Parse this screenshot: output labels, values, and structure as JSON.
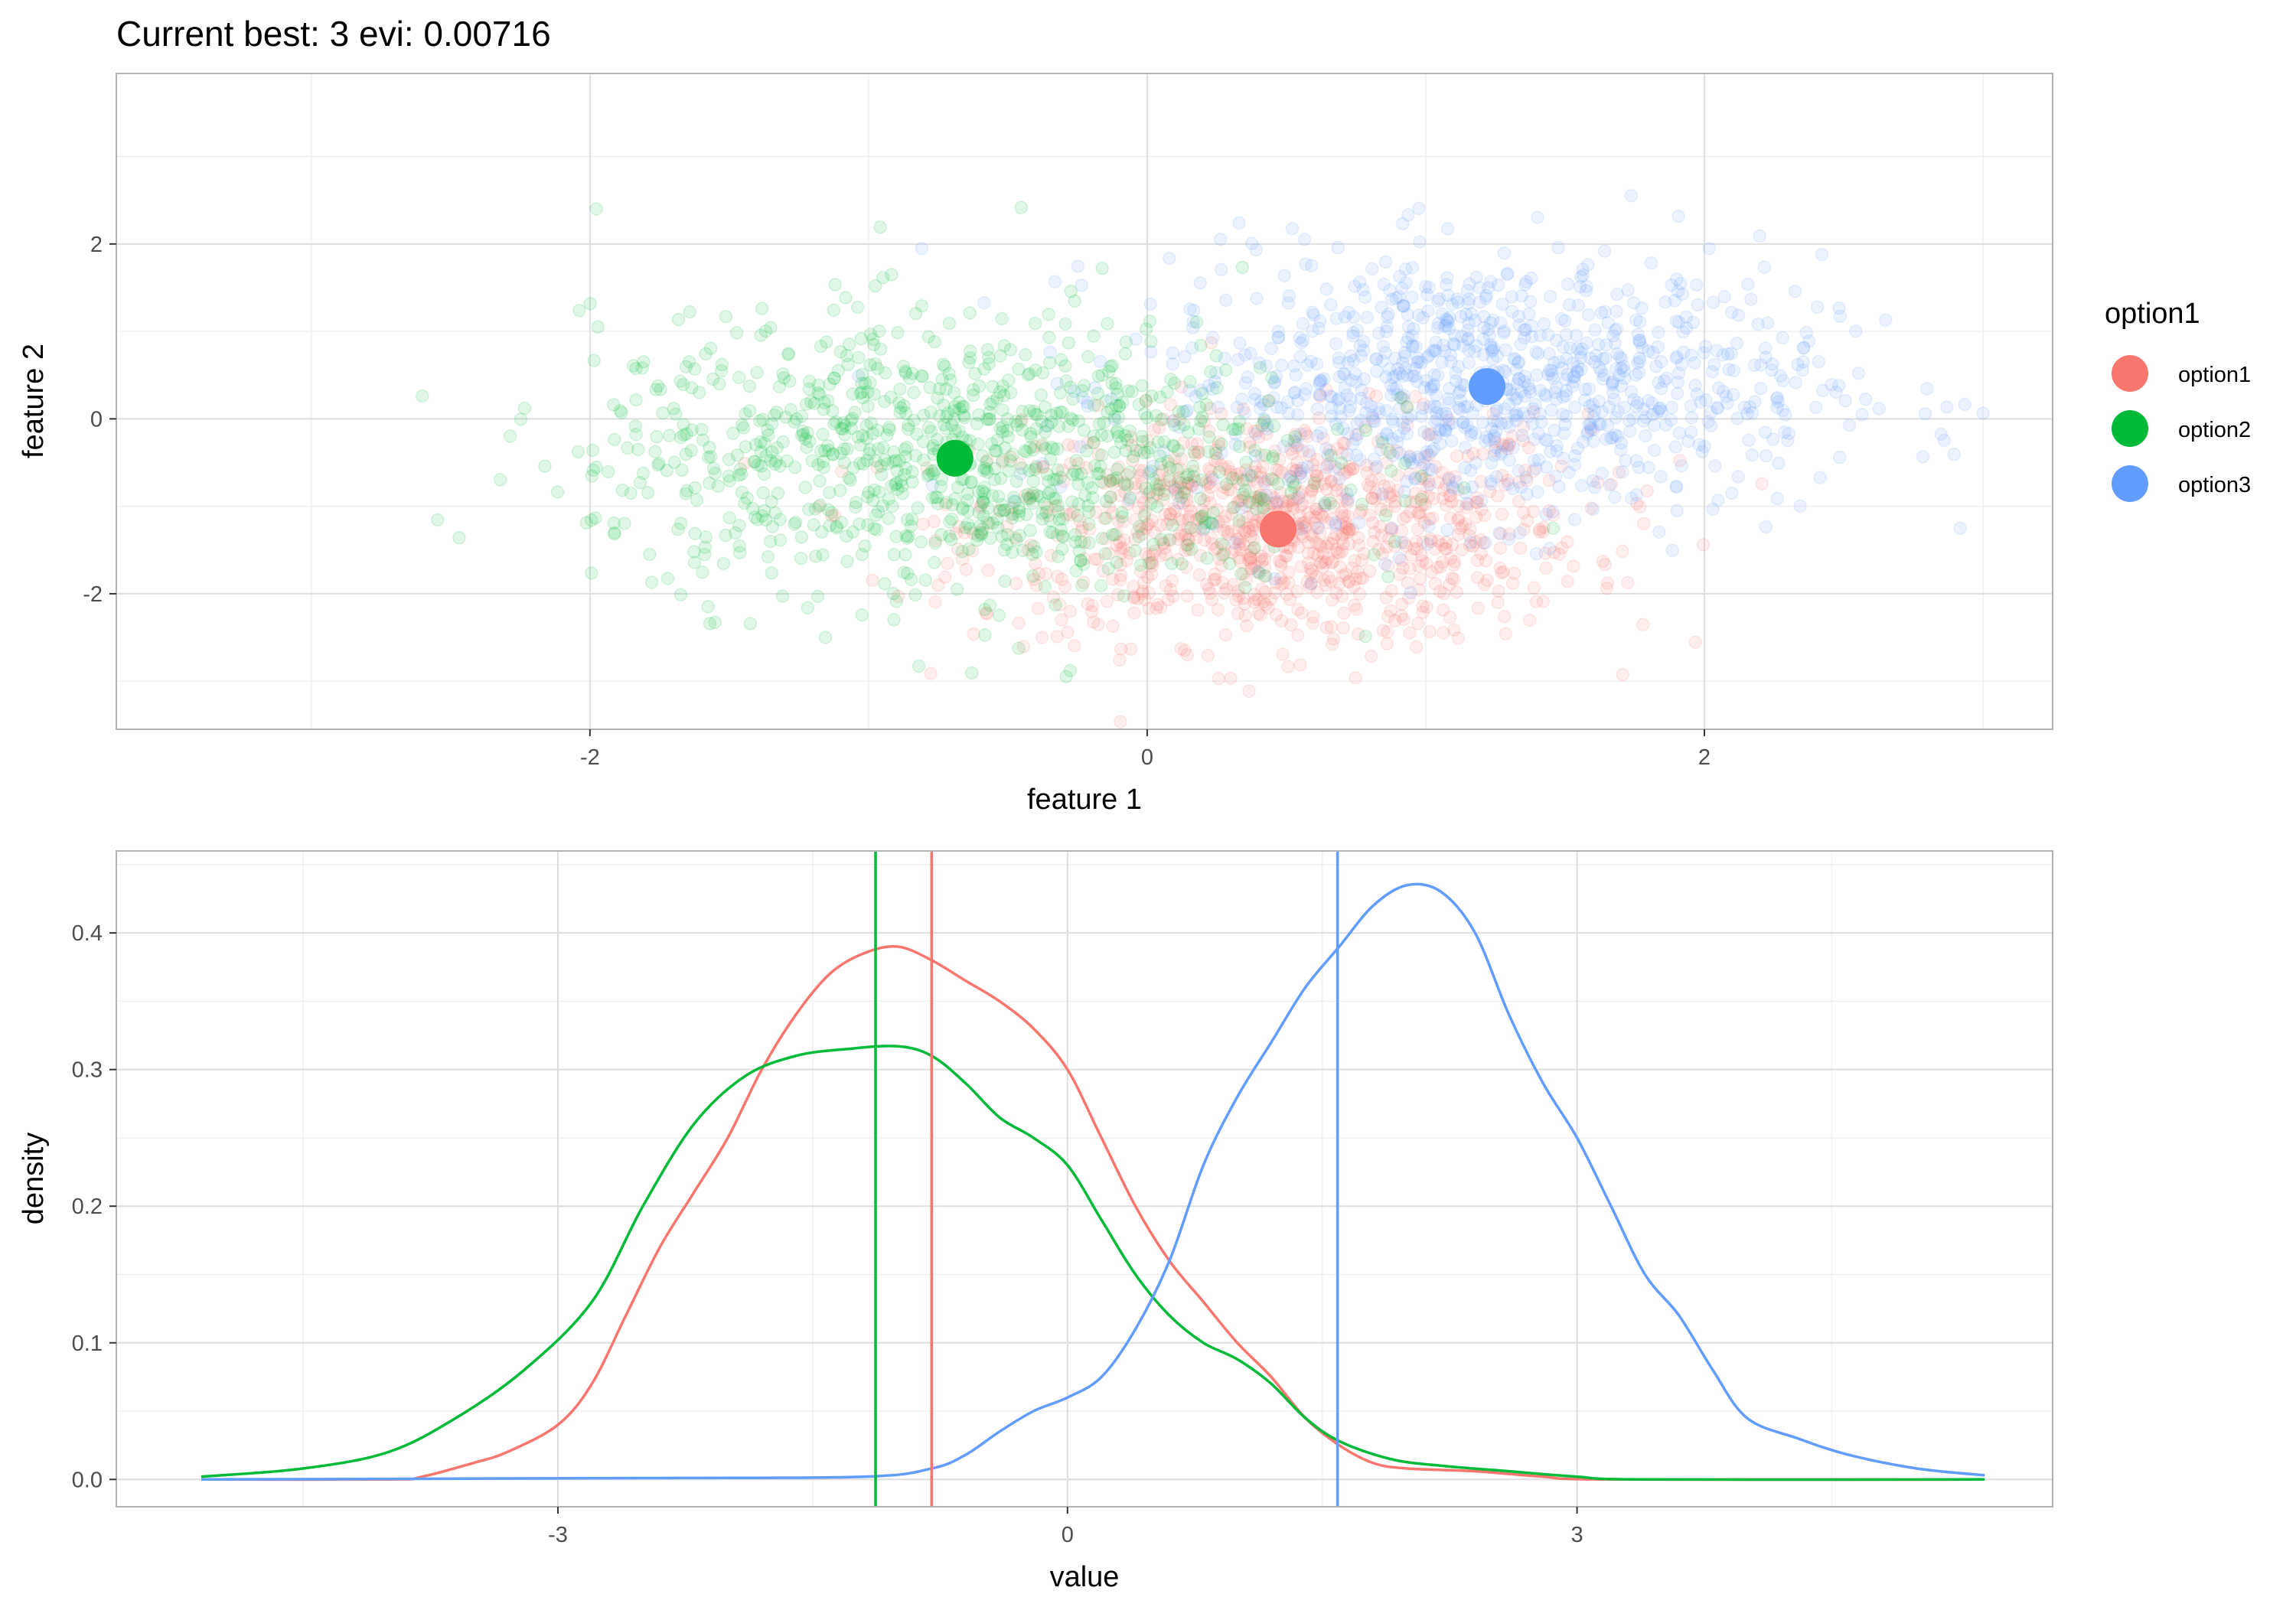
{
  "title": "Current best: 3 evi: 0.00716",
  "legend": {
    "title": "option1",
    "items": [
      {
        "label": "option1",
        "color": "#F8766D"
      },
      {
        "label": "option2",
        "color": "#00BA38"
      },
      {
        "label": "option3",
        "color": "#619CFF"
      }
    ]
  },
  "chart_data": [
    {
      "type": "scatter",
      "xlabel": "feature 1",
      "ylabel": "feature 2",
      "xlim": [
        -3.7,
        3.25
      ],
      "ylim": [
        -3.55,
        3.95
      ],
      "xticks": [
        -2,
        0,
        2
      ],
      "yticks": [
        -2,
        0,
        2
      ],
      "grid": true,
      "point_alpha": 0.12,
      "clusters": [
        {
          "name": "option1",
          "color": "#F8766D",
          "mean": [
            0.47,
            -1.26
          ],
          "sd": [
            0.55,
            0.65
          ],
          "n": 1000
        },
        {
          "name": "option2",
          "color": "#00BA38",
          "mean": [
            -0.69,
            -0.45
          ],
          "sd": [
            0.65,
            0.8
          ],
          "n": 1000
        },
        {
          "name": "option3",
          "color": "#619CFF",
          "mean": [
            1.22,
            0.37
          ],
          "sd": [
            0.6,
            0.75
          ],
          "n": 1000
        }
      ],
      "centroids": [
        {
          "name": "option1",
          "x": 0.47,
          "y": -1.26
        },
        {
          "name": "option2",
          "x": -0.69,
          "y": -0.45
        },
        {
          "name": "option3",
          "x": 1.22,
          "y": 0.37
        }
      ]
    },
    {
      "type": "line",
      "xlabel": "value",
      "ylabel": "density",
      "xlim": [
        -5.6,
        5.8
      ],
      "ylim": [
        -0.02,
        0.46
      ],
      "xticks": [
        -3,
        0,
        3
      ],
      "yticks": [
        0.0,
        0.1,
        0.2,
        0.3,
        0.4
      ],
      "ytick_labels": [
        "0.0",
        "0.1",
        "0.2",
        "0.3",
        "0.4"
      ],
      "grid": true,
      "series": [
        {
          "name": "option1",
          "color": "#F8766D",
          "vline": -0.8,
          "points": [
            [
              -5.1,
              0.0
            ],
            [
              -4.0,
              0.0
            ],
            [
              -3.8,
              0.002
            ],
            [
              -3.5,
              0.012
            ],
            [
              -3.3,
              0.02
            ],
            [
              -3.0,
              0.04
            ],
            [
              -2.8,
              0.07
            ],
            [
              -2.6,
              0.12
            ],
            [
              -2.4,
              0.17
            ],
            [
              -2.2,
              0.21
            ],
            [
              -2.0,
              0.25
            ],
            [
              -1.8,
              0.3
            ],
            [
              -1.6,
              0.34
            ],
            [
              -1.4,
              0.37
            ],
            [
              -1.2,
              0.385
            ],
            [
              -1.0,
              0.39
            ],
            [
              -0.8,
              0.38
            ],
            [
              -0.6,
              0.365
            ],
            [
              -0.4,
              0.35
            ],
            [
              -0.2,
              0.33
            ],
            [
              0.0,
              0.3
            ],
            [
              0.2,
              0.25
            ],
            [
              0.4,
              0.2
            ],
            [
              0.6,
              0.16
            ],
            [
              0.8,
              0.13
            ],
            [
              1.0,
              0.1
            ],
            [
              1.2,
              0.075
            ],
            [
              1.4,
              0.045
            ],
            [
              1.6,
              0.025
            ],
            [
              1.8,
              0.012
            ],
            [
              2.0,
              0.008
            ],
            [
              2.4,
              0.006
            ],
            [
              2.8,
              0.002
            ],
            [
              3.2,
              0.0
            ],
            [
              5.4,
              0.0
            ]
          ]
        },
        {
          "name": "option2",
          "color": "#00BA38",
          "vline": -1.13,
          "points": [
            [
              -5.1,
              0.002
            ],
            [
              -4.5,
              0.008
            ],
            [
              -4.0,
              0.02
            ],
            [
              -3.6,
              0.045
            ],
            [
              -3.2,
              0.08
            ],
            [
              -2.8,
              0.13
            ],
            [
              -2.5,
              0.2
            ],
            [
              -2.2,
              0.26
            ],
            [
              -1.9,
              0.295
            ],
            [
              -1.6,
              0.31
            ],
            [
              -1.3,
              0.315
            ],
            [
              -1.0,
              0.317
            ],
            [
              -0.8,
              0.31
            ],
            [
              -0.6,
              0.29
            ],
            [
              -0.4,
              0.265
            ],
            [
              -0.2,
              0.25
            ],
            [
              0.0,
              0.23
            ],
            [
              0.2,
              0.19
            ],
            [
              0.4,
              0.15
            ],
            [
              0.6,
              0.12
            ],
            [
              0.8,
              0.1
            ],
            [
              1.0,
              0.088
            ],
            [
              1.2,
              0.07
            ],
            [
              1.4,
              0.045
            ],
            [
              1.6,
              0.028
            ],
            [
              1.9,
              0.015
            ],
            [
              2.2,
              0.01
            ],
            [
              2.6,
              0.006
            ],
            [
              3.0,
              0.002
            ],
            [
              3.4,
              0.0
            ],
            [
              5.4,
              0.0
            ]
          ]
        },
        {
          "name": "option3",
          "color": "#619CFF",
          "vline": 1.59,
          "points": [
            [
              -5.1,
              0.0
            ],
            [
              -2.5,
              0.001
            ],
            [
              -1.2,
              0.002
            ],
            [
              -0.8,
              0.008
            ],
            [
              -0.6,
              0.018
            ],
            [
              -0.4,
              0.035
            ],
            [
              -0.2,
              0.05
            ],
            [
              0.0,
              0.06
            ],
            [
              0.2,
              0.075
            ],
            [
              0.4,
              0.11
            ],
            [
              0.6,
              0.16
            ],
            [
              0.8,
              0.23
            ],
            [
              1.0,
              0.28
            ],
            [
              1.2,
              0.32
            ],
            [
              1.4,
              0.36
            ],
            [
              1.6,
              0.39
            ],
            [
              1.8,
              0.42
            ],
            [
              2.0,
              0.435
            ],
            [
              2.2,
              0.43
            ],
            [
              2.4,
              0.4
            ],
            [
              2.6,
              0.34
            ],
            [
              2.8,
              0.29
            ],
            [
              3.0,
              0.25
            ],
            [
              3.2,
              0.2
            ],
            [
              3.4,
              0.15
            ],
            [
              3.6,
              0.12
            ],
            [
              3.8,
              0.08
            ],
            [
              4.0,
              0.045
            ],
            [
              4.3,
              0.03
            ],
            [
              4.6,
              0.018
            ],
            [
              5.0,
              0.008
            ],
            [
              5.4,
              0.003
            ]
          ]
        }
      ]
    }
  ]
}
